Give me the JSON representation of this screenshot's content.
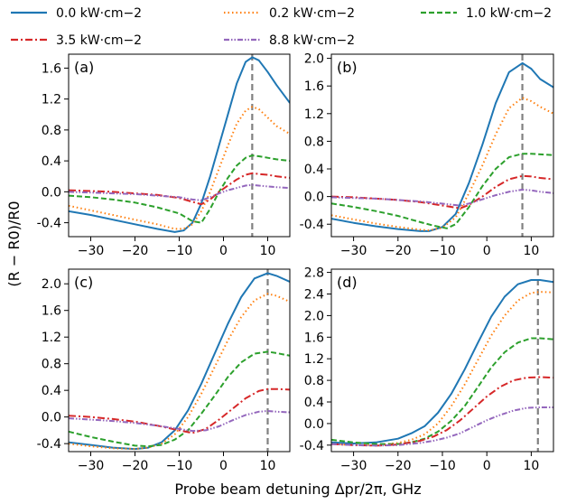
{
  "chart_data": {
    "type": "line",
    "xlabel": "Probe beam detuning Δpr/2π, GHz",
    "ylabel": "(R − R0)/R0",
    "legend_placement": "top",
    "series_styles": [
      {
        "name": "0.0 kW·cm−2",
        "color": "#1f77b4",
        "dash": "solid"
      },
      {
        "name": "0.2 kW·cm−2",
        "color": "#ff7f0e",
        "dash": "dotted"
      },
      {
        "name": "1.0 kW·cm−2",
        "color": "#2ca02c",
        "dash": "dashed"
      },
      {
        "name": "3.5 kW·cm−2",
        "color": "#d62728",
        "dash": "dashdot"
      },
      {
        "name": "8.8 kW·cm−2",
        "color": "#9467bd",
        "dash": "dashdotdot"
      }
    ],
    "legend_order": [
      0,
      1,
      2,
      3,
      4
    ],
    "panels": [
      {
        "label": "(a)",
        "xlim": [
          -35,
          15
        ],
        "ylim": [
          -0.58,
          1.78
        ],
        "xticks": [
          -30,
          -20,
          -10,
          0,
          10
        ],
        "yticks": [
          -0.4,
          0.0,
          0.4,
          0.8,
          1.2,
          1.6
        ],
        "ytick_labels": [
          "-0.4",
          "0.0",
          "0.4",
          "0.8",
          "1.2",
          "1.6"
        ],
        "vline_x": 6.5,
        "series": [
          {
            "x": [
              -35,
              -30,
              -25,
              -20,
              -15,
              -11,
              -9,
              -7,
              -5,
              -3,
              -1,
              1,
              3,
              5,
              6.5,
              8,
              10,
              12,
              15
            ],
            "y": [
              -0.25,
              -0.3,
              -0.36,
              -0.42,
              -0.48,
              -0.52,
              -0.5,
              -0.4,
              -0.15,
              0.2,
              0.6,
              1.0,
              1.4,
              1.68,
              1.74,
              1.7,
              1.55,
              1.38,
              1.15
            ]
          },
          {
            "x": [
              -35,
              -30,
              -25,
              -20,
              -15,
              -11,
              -9,
              -7,
              -5,
              -3,
              -1,
              1,
              3,
              5,
              6.5,
              8,
              10,
              12,
              15
            ],
            "y": [
              -0.18,
              -0.24,
              -0.3,
              -0.36,
              -0.42,
              -0.48,
              -0.48,
              -0.42,
              -0.25,
              0.0,
              0.3,
              0.6,
              0.88,
              1.05,
              1.1,
              1.07,
              0.96,
              0.85,
              0.75
            ]
          },
          {
            "x": [
              -35,
              -30,
              -25,
              -20,
              -15,
              -10,
              -7,
              -5,
              -3,
              -1,
              1,
              3,
              5,
              6.5,
              8,
              10,
              12,
              15
            ],
            "y": [
              -0.05,
              -0.07,
              -0.1,
              -0.14,
              -0.2,
              -0.28,
              -0.38,
              -0.4,
              -0.22,
              0.0,
              0.18,
              0.34,
              0.44,
              0.47,
              0.46,
              0.44,
              0.42,
              0.4
            ]
          },
          {
            "x": [
              -35,
              -30,
              -25,
              -20,
              -15,
              -10,
              -7,
              -5,
              -3,
              -1,
              1,
              3,
              5,
              6.5,
              8,
              10,
              12,
              15
            ],
            "y": [
              0.02,
              0.01,
              0.0,
              -0.02,
              -0.04,
              -0.08,
              -0.13,
              -0.16,
              -0.1,
              0.0,
              0.08,
              0.16,
              0.22,
              0.24,
              0.23,
              0.22,
              0.2,
              0.18
            ]
          },
          {
            "x": [
              -35,
              -30,
              -25,
              -20,
              -15,
              -10,
              -7,
              -5,
              -3,
              -1,
              1,
              3,
              5,
              6.5,
              8,
              10,
              12,
              15
            ],
            "y": [
              0.0,
              -0.01,
              -0.02,
              -0.03,
              -0.05,
              -0.07,
              -0.1,
              -0.11,
              -0.07,
              -0.02,
              0.02,
              0.05,
              0.08,
              0.09,
              0.08,
              0.07,
              0.06,
              0.05
            ]
          }
        ]
      },
      {
        "label": "(b)",
        "xlim": [
          -35,
          15
        ],
        "ylim": [
          -0.58,
          2.06
        ],
        "xticks": [
          -30,
          -20,
          -10,
          0,
          10
        ],
        "yticks": [
          -0.4,
          0.0,
          0.4,
          0.8,
          1.2,
          1.6,
          2.0
        ],
        "ytick_labels": [
          "-0.4",
          "0.0",
          "0.4",
          "0.8",
          "1.2",
          "1.6",
          "2.0"
        ],
        "vline_x": 8,
        "series": [
          {
            "x": [
              -35,
              -30,
              -25,
              -20,
              -15,
              -13,
              -10,
              -7,
              -4,
              -1,
              2,
              5,
              8,
              10,
              12,
              15
            ],
            "y": [
              -0.32,
              -0.38,
              -0.43,
              -0.47,
              -0.5,
              -0.5,
              -0.44,
              -0.25,
              0.2,
              0.75,
              1.35,
              1.8,
              1.93,
              1.85,
              1.7,
              1.58
            ]
          },
          {
            "x": [
              -35,
              -30,
              -25,
              -20,
              -15,
              -13,
              -10,
              -7,
              -4,
              -1,
              2,
              5,
              8,
              10,
              12,
              15
            ],
            "y": [
              -0.27,
              -0.33,
              -0.39,
              -0.44,
              -0.48,
              -0.49,
              -0.45,
              -0.3,
              0.05,
              0.45,
              0.9,
              1.28,
              1.43,
              1.38,
              1.3,
              1.2
            ]
          },
          {
            "x": [
              -35,
              -30,
              -25,
              -20,
              -15,
              -12,
              -9,
              -7,
              -4,
              -1,
              2,
              5,
              8,
              10,
              12,
              15
            ],
            "y": [
              -0.1,
              -0.15,
              -0.21,
              -0.28,
              -0.37,
              -0.42,
              -0.46,
              -0.4,
              -0.15,
              0.15,
              0.4,
              0.57,
              0.62,
              0.62,
              0.61,
              0.6
            ]
          },
          {
            "x": [
              -35,
              -30,
              -25,
              -20,
              -15,
              -12,
              -9,
              -6,
              -4,
              -1,
              2,
              5,
              8,
              10,
              12,
              15
            ],
            "y": [
              0.0,
              -0.01,
              -0.03,
              -0.05,
              -0.08,
              -0.11,
              -0.14,
              -0.17,
              -0.12,
              0.0,
              0.14,
              0.25,
              0.3,
              0.29,
              0.27,
              0.25
            ]
          },
          {
            "x": [
              -35,
              -30,
              -25,
              -20,
              -15,
              -12,
              -9,
              -6,
              -4,
              -1,
              2,
              5,
              8,
              10,
              12,
              15
            ],
            "y": [
              -0.01,
              -0.02,
              -0.03,
              -0.05,
              -0.07,
              -0.09,
              -0.11,
              -0.13,
              -0.1,
              -0.04,
              0.02,
              0.07,
              0.1,
              0.09,
              0.07,
              0.05
            ]
          }
        ]
      },
      {
        "label": "(c)",
        "xlim": [
          -35,
          15
        ],
        "ylim": [
          -0.52,
          2.22
        ],
        "xticks": [
          -30,
          -20,
          -10,
          0,
          10
        ],
        "yticks": [
          -0.4,
          0.0,
          0.4,
          0.8,
          1.2,
          1.6,
          2.0
        ],
        "ytick_labels": [
          "-0.4",
          "0.0",
          "0.4",
          "0.8",
          "1.2",
          "1.6",
          "2.0"
        ],
        "vline_x": 10,
        "series": [
          {
            "x": [
              -35,
              -30,
              -25,
              -20,
              -17,
              -14,
              -11,
              -8,
              -5,
              -2,
              1,
              4,
              7,
              10,
              12,
              15
            ],
            "y": [
              -0.38,
              -0.42,
              -0.46,
              -0.48,
              -0.46,
              -0.38,
              -0.2,
              0.1,
              0.5,
              0.95,
              1.4,
              1.8,
              2.08,
              2.16,
              2.12,
              2.03
            ]
          },
          {
            "x": [
              -35,
              -30,
              -25,
              -20,
              -17,
              -14,
              -11,
              -8,
              -5,
              -2,
              1,
              4,
              7,
              10,
              12,
              15
            ],
            "y": [
              -0.4,
              -0.44,
              -0.47,
              -0.48,
              -0.46,
              -0.4,
              -0.26,
              0.0,
              0.35,
              0.75,
              1.15,
              1.5,
              1.75,
              1.85,
              1.82,
              1.73
            ]
          },
          {
            "x": [
              -35,
              -30,
              -25,
              -20,
              -17,
              -14,
              -11,
              -8,
              -5,
              -2,
              1,
              4,
              7,
              10,
              12,
              15
            ],
            "y": [
              -0.22,
              -0.3,
              -0.37,
              -0.43,
              -0.44,
              -0.42,
              -0.34,
              -0.2,
              0.05,
              0.32,
              0.6,
              0.82,
              0.95,
              0.98,
              0.96,
              0.92
            ]
          },
          {
            "x": [
              -35,
              -30,
              -25,
              -20,
              -15,
              -10,
              -7,
              -4,
              -1,
              2,
              5,
              8,
              10,
              12,
              15
            ],
            "y": [
              0.02,
              0.0,
              -0.03,
              -0.07,
              -0.13,
              -0.2,
              -0.24,
              -0.18,
              -0.04,
              0.12,
              0.28,
              0.39,
              0.42,
              0.42,
              0.41
            ]
          },
          {
            "x": [
              -35,
              -30,
              -25,
              -20,
              -15,
              -10,
              -7,
              -4,
              -1,
              2,
              5,
              8,
              10,
              12,
              15
            ],
            "y": [
              -0.02,
              -0.04,
              -0.06,
              -0.09,
              -0.13,
              -0.18,
              -0.21,
              -0.2,
              -0.14,
              -0.05,
              0.03,
              0.08,
              0.09,
              0.08,
              0.07
            ]
          }
        ]
      },
      {
        "label": "(d)",
        "xlim": [
          -35,
          15
        ],
        "ylim": [
          -0.52,
          2.86
        ],
        "xticks": [
          -30,
          -20,
          -10,
          0,
          10
        ],
        "yticks": [
          -0.4,
          0.0,
          0.4,
          0.8,
          1.2,
          1.6,
          2.0,
          2.4,
          2.8
        ],
        "ytick_labels": [
          "-0.4",
          "0.0",
          "0.4",
          "0.8",
          "1.2",
          "1.6",
          "2.0",
          "2.4",
          "2.8"
        ],
        "vline_x": 11.5,
        "series": [
          {
            "x": [
              -35,
              -30,
              -25,
              -20,
              -17,
              -14,
              -11,
              -8,
              -5,
              -2,
              1,
              4,
              7,
              10,
              12,
              15
            ],
            "y": [
              -0.35,
              -0.37,
              -0.35,
              -0.28,
              -0.18,
              -0.05,
              0.2,
              0.55,
              1.0,
              1.5,
              1.98,
              2.35,
              2.58,
              2.66,
              2.66,
              2.62
            ]
          },
          {
            "x": [
              -35,
              -30,
              -25,
              -20,
              -17,
              -14,
              -11,
              -8,
              -5,
              -2,
              1,
              4,
              7,
              10,
              12,
              15
            ],
            "y": [
              -0.38,
              -0.4,
              -0.4,
              -0.36,
              -0.3,
              -0.2,
              0.0,
              0.32,
              0.72,
              1.18,
              1.63,
              2.0,
              2.28,
              2.42,
              2.44,
              2.43
            ]
          },
          {
            "x": [
              -35,
              -30,
              -25,
              -20,
              -17,
              -14,
              -11,
              -8,
              -5,
              -2,
              1,
              4,
              7,
              10,
              12,
              15
            ],
            "y": [
              -0.3,
              -0.35,
              -0.38,
              -0.38,
              -0.35,
              -0.28,
              -0.15,
              0.05,
              0.32,
              0.68,
              1.04,
              1.32,
              1.5,
              1.58,
              1.58,
              1.56
            ]
          },
          {
            "x": [
              -35,
              -30,
              -25,
              -20,
              -15,
              -12,
              -9,
              -6,
              -3,
              0,
              3,
              6,
              9,
              12,
              15
            ],
            "y": [
              -0.38,
              -0.4,
              -0.41,
              -0.39,
              -0.32,
              -0.24,
              -0.12,
              0.06,
              0.28,
              0.5,
              0.68,
              0.8,
              0.85,
              0.86,
              0.85
            ]
          },
          {
            "x": [
              -35,
              -30,
              -25,
              -20,
              -15,
              -12,
              -9,
              -6,
              -3,
              0,
              3,
              6,
              9,
              12,
              15
            ],
            "y": [
              -0.38,
              -0.4,
              -0.41,
              -0.4,
              -0.36,
              -0.32,
              -0.26,
              -0.18,
              -0.06,
              0.06,
              0.16,
              0.24,
              0.29,
              0.3,
              0.3
            ]
          }
        ]
      }
    ]
  }
}
